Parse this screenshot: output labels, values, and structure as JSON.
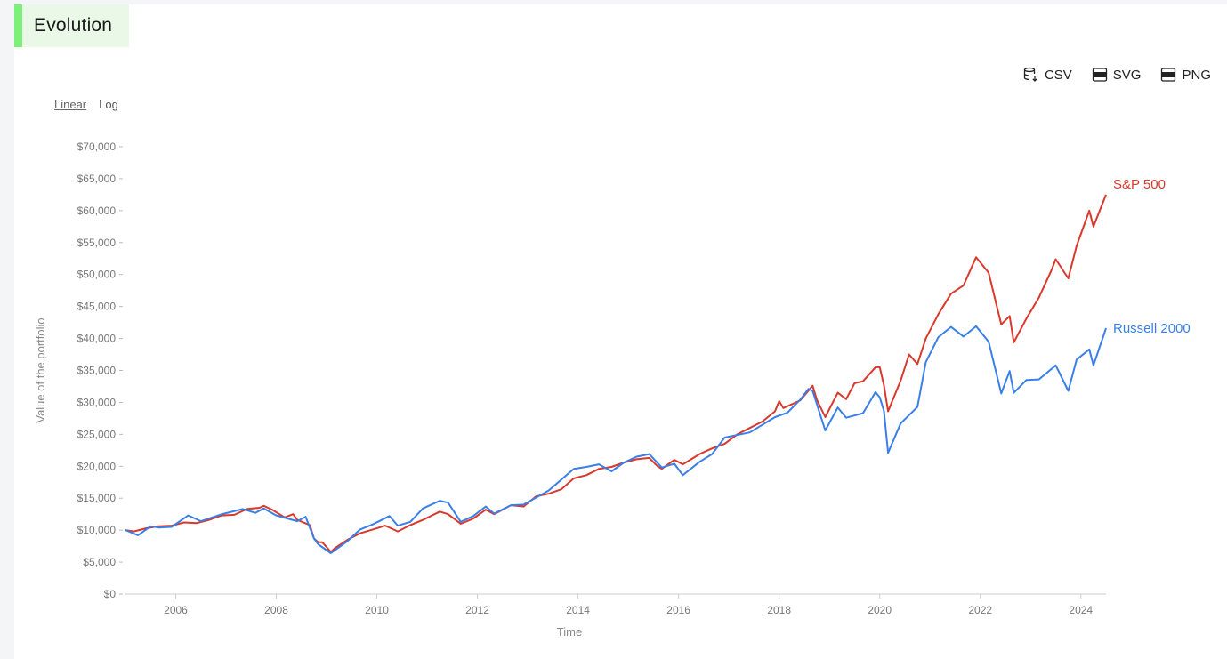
{
  "header": {
    "title": "Evolution"
  },
  "exports": [
    {
      "label": "CSV",
      "icon": "database-download-icon"
    },
    {
      "label": "SVG",
      "icon": "svg-file-icon"
    },
    {
      "label": "PNG",
      "icon": "png-file-icon"
    }
  ],
  "scale": {
    "linear_label": "Linear",
    "log_label": "Log",
    "selected": "Linear"
  },
  "colors": {
    "sp500": "#d9392d",
    "russell": "#3a7fe8",
    "accent": "#7df07a"
  },
  "chart_data": {
    "type": "line",
    "xlabel": "Time",
    "ylabel": "Value of the portfolio",
    "ylim": [
      0,
      70000
    ],
    "xlim": [
      "2005-01",
      "2024-07"
    ],
    "grid": false,
    "legend": "end-of-line labels",
    "y_ticks": [
      "$0",
      "$5,000",
      "$10,000",
      "$15,000",
      "$20,000",
      "$25,000",
      "$30,000",
      "$35,000",
      "$40,000",
      "$45,000",
      "$50,000",
      "$55,000",
      "$60,000",
      "$65,000",
      "$70,000"
    ],
    "x_ticks": [
      "2006",
      "2008",
      "2010",
      "2012",
      "2014",
      "2016",
      "2018",
      "2020",
      "2022",
      "2024"
    ],
    "series": [
      {
        "name": "S&P 500",
        "color": "#d9392d",
        "points": [
          [
            "2005-01",
            10000
          ],
          [
            "2005-03",
            9800
          ],
          [
            "2005-06",
            10300
          ],
          [
            "2005-09",
            10600
          ],
          [
            "2005-12",
            10700
          ],
          [
            "2006-03",
            11200
          ],
          [
            "2006-06",
            11100
          ],
          [
            "2006-09",
            11600
          ],
          [
            "2006-12",
            12300
          ],
          [
            "2007-03",
            12400
          ],
          [
            "2007-06",
            13300
          ],
          [
            "2007-09",
            13500
          ],
          [
            "2007-10",
            13800
          ],
          [
            "2007-12",
            13200
          ],
          [
            "2008-03",
            12000
          ],
          [
            "2008-05",
            12500
          ],
          [
            "2008-06",
            11600
          ],
          [
            "2008-09",
            10800
          ],
          [
            "2008-10",
            8700
          ],
          [
            "2008-11",
            8100
          ],
          [
            "2008-12",
            8100
          ],
          [
            "2009-02",
            6600
          ],
          [
            "2009-03",
            7200
          ],
          [
            "2009-06",
            8500
          ],
          [
            "2009-09",
            9500
          ],
          [
            "2009-12",
            10100
          ],
          [
            "2010-03",
            10700
          ],
          [
            "2010-06",
            9800
          ],
          [
            "2010-09",
            10800
          ],
          [
            "2010-12",
            11600
          ],
          [
            "2011-04",
            12900
          ],
          [
            "2011-06",
            12500
          ],
          [
            "2011-09",
            11000
          ],
          [
            "2011-12",
            11800
          ],
          [
            "2012-03",
            13200
          ],
          [
            "2012-05",
            12500
          ],
          [
            "2012-09",
            13900
          ],
          [
            "2012-12",
            13700
          ],
          [
            "2013-03",
            15300
          ],
          [
            "2013-06",
            15700
          ],
          [
            "2013-09",
            16400
          ],
          [
            "2013-12",
            18100
          ],
          [
            "2014-03",
            18600
          ],
          [
            "2014-06",
            19600
          ],
          [
            "2014-09",
            19900
          ],
          [
            "2014-12",
            20600
          ],
          [
            "2015-03",
            21100
          ],
          [
            "2015-06",
            21300
          ],
          [
            "2015-08",
            20000
          ],
          [
            "2015-09",
            19600
          ],
          [
            "2015-12",
            21000
          ],
          [
            "2016-02",
            20300
          ],
          [
            "2016-06",
            21900
          ],
          [
            "2016-09",
            22800
          ],
          [
            "2016-12",
            23500
          ],
          [
            "2017-03",
            25000
          ],
          [
            "2017-06",
            26000
          ],
          [
            "2017-09",
            27000
          ],
          [
            "2017-12",
            28600
          ],
          [
            "2018-01",
            30200
          ],
          [
            "2018-02",
            29100
          ],
          [
            "2018-06",
            30300
          ],
          [
            "2018-09",
            32600
          ],
          [
            "2018-10",
            30400
          ],
          [
            "2018-12",
            27700
          ],
          [
            "2019-03",
            31500
          ],
          [
            "2019-05",
            30500
          ],
          [
            "2019-07",
            33000
          ],
          [
            "2019-09",
            33300
          ],
          [
            "2019-12",
            35500
          ],
          [
            "2020-01",
            35500
          ],
          [
            "2020-02",
            32700
          ],
          [
            "2020-03",
            28600
          ],
          [
            "2020-06",
            33400
          ],
          [
            "2020-08",
            37500
          ],
          [
            "2020-10",
            36000
          ],
          [
            "2020-12",
            40000
          ],
          [
            "2021-03",
            43800
          ],
          [
            "2021-06",
            47000
          ],
          [
            "2021-09",
            48300
          ],
          [
            "2021-12",
            52700
          ],
          [
            "2022-03",
            50300
          ],
          [
            "2022-06",
            42200
          ],
          [
            "2022-08",
            43500
          ],
          [
            "2022-09",
            39400
          ],
          [
            "2022-12",
            43100
          ],
          [
            "2023-03",
            46400
          ],
          [
            "2023-06",
            50700
          ],
          [
            "2023-07",
            52400
          ],
          [
            "2023-10",
            49400
          ],
          [
            "2023-12",
            54500
          ],
          [
            "2024-03",
            60000
          ],
          [
            "2024-04",
            57500
          ],
          [
            "2024-07",
            62500
          ]
        ]
      },
      {
        "name": "Russell 2000",
        "color": "#3a7fe8",
        "points": [
          [
            "2005-01",
            10000
          ],
          [
            "2005-04",
            9200
          ],
          [
            "2005-07",
            10600
          ],
          [
            "2005-09",
            10400
          ],
          [
            "2005-12",
            10500
          ],
          [
            "2006-04",
            12300
          ],
          [
            "2006-07",
            11400
          ],
          [
            "2006-12",
            12500
          ],
          [
            "2007-05",
            13300
          ],
          [
            "2007-08",
            12700
          ],
          [
            "2007-10",
            13400
          ],
          [
            "2008-01",
            12300
          ],
          [
            "2008-06",
            11400
          ],
          [
            "2008-08",
            12100
          ],
          [
            "2008-10",
            8700
          ],
          [
            "2008-11",
            7800
          ],
          [
            "2009-02",
            6400
          ],
          [
            "2009-06",
            8300
          ],
          [
            "2009-09",
            10100
          ],
          [
            "2009-12",
            10900
          ],
          [
            "2010-04",
            12200
          ],
          [
            "2010-06",
            10700
          ],
          [
            "2010-09",
            11300
          ],
          [
            "2010-12",
            13400
          ],
          [
            "2011-04",
            14600
          ],
          [
            "2011-06",
            14300
          ],
          [
            "2011-09",
            11300
          ],
          [
            "2011-12",
            12200
          ],
          [
            "2012-03",
            13700
          ],
          [
            "2012-05",
            12600
          ],
          [
            "2012-09",
            13900
          ],
          [
            "2012-12",
            14000
          ],
          [
            "2013-06",
            16200
          ],
          [
            "2013-12",
            19600
          ],
          [
            "2014-03",
            19900
          ],
          [
            "2014-06",
            20300
          ],
          [
            "2014-09",
            19200
          ],
          [
            "2014-12",
            20600
          ],
          [
            "2015-03",
            21500
          ],
          [
            "2015-06",
            21900
          ],
          [
            "2015-09",
            19800
          ],
          [
            "2015-12",
            20400
          ],
          [
            "2016-02",
            18600
          ],
          [
            "2016-06",
            20700
          ],
          [
            "2016-09",
            21900
          ],
          [
            "2016-12",
            24500
          ],
          [
            "2017-06",
            25300
          ],
          [
            "2017-12",
            27700
          ],
          [
            "2018-03",
            28400
          ],
          [
            "2018-06",
            30400
          ],
          [
            "2018-08",
            32100
          ],
          [
            "2018-09",
            31800
          ],
          [
            "2018-12",
            25600
          ],
          [
            "2019-03",
            29200
          ],
          [
            "2019-05",
            27600
          ],
          [
            "2019-09",
            28300
          ],
          [
            "2019-12",
            31600
          ],
          [
            "2020-01",
            30800
          ],
          [
            "2020-02",
            28700
          ],
          [
            "2020-03",
            22100
          ],
          [
            "2020-06",
            26700
          ],
          [
            "2020-08",
            28000
          ],
          [
            "2020-10",
            29300
          ],
          [
            "2020-12",
            36300
          ],
          [
            "2021-03",
            40200
          ],
          [
            "2021-06",
            41800
          ],
          [
            "2021-09",
            40300
          ],
          [
            "2021-12",
            41900
          ],
          [
            "2022-03",
            39500
          ],
          [
            "2022-06",
            31400
          ],
          [
            "2022-08",
            34900
          ],
          [
            "2022-09",
            31500
          ],
          [
            "2022-12",
            33500
          ],
          [
            "2023-03",
            33600
          ],
          [
            "2023-07",
            35800
          ],
          [
            "2023-10",
            31800
          ],
          [
            "2023-12",
            36700
          ],
          [
            "2024-03",
            38300
          ],
          [
            "2024-04",
            35800
          ],
          [
            "2024-07",
            41600
          ]
        ]
      }
    ]
  }
}
